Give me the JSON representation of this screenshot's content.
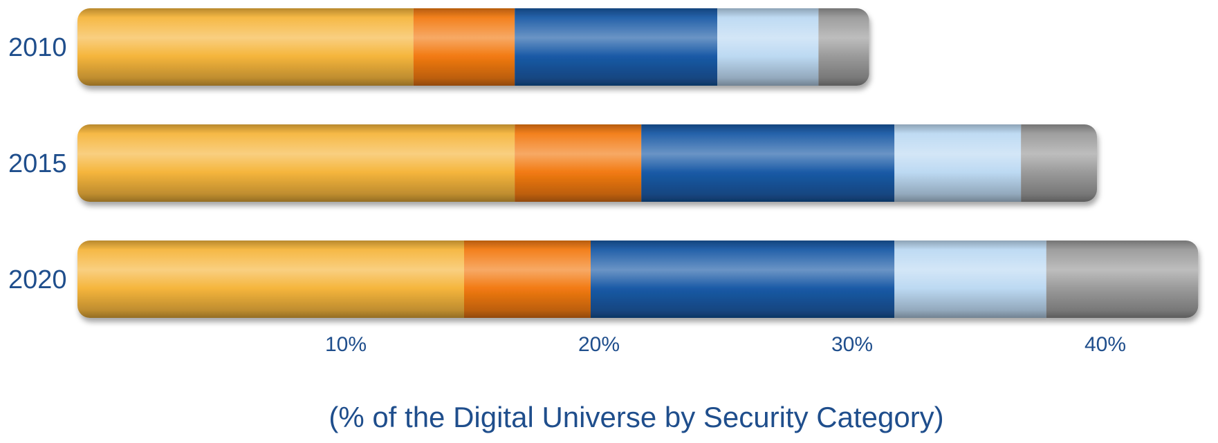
{
  "chart_data": {
    "type": "bar",
    "orientation": "horizontal",
    "stacked": true,
    "categories": [
      "2010",
      "2015",
      "2020"
    ],
    "series": [
      {
        "values": [
          13,
          17,
          15
        ],
        "color": "#f5b53c"
      },
      {
        "values": [
          4,
          5,
          5
        ],
        "color": "#f27a12"
      },
      {
        "values": [
          8,
          10,
          12
        ],
        "color": "#1a5aa6"
      },
      {
        "values": [
          4,
          5,
          6
        ],
        "color": "#bcd9f2"
      },
      {
        "values": [
          2,
          3,
          6
        ],
        "color": "#9a9a9a"
      }
    ],
    "x_ticks": [
      10,
      20,
      30,
      40
    ],
    "x_tick_labels": [
      "10%",
      "20%",
      "30%",
      "40%"
    ],
    "xlabel": "(% of the Digital Universe by Security Category)",
    "xlim": [
      0,
      44
    ],
    "grid": false,
    "legend": false
  }
}
